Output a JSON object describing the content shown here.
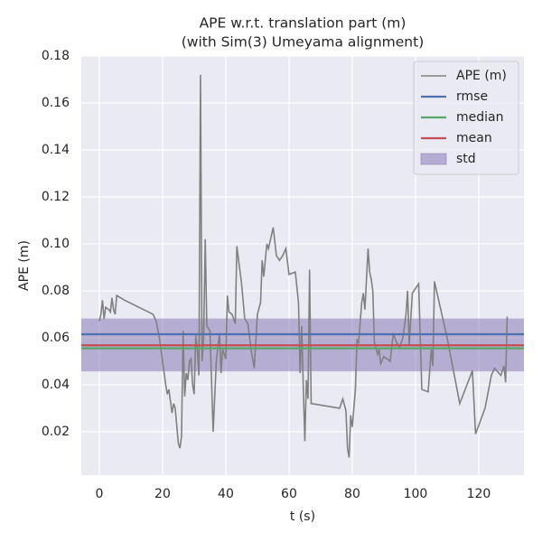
{
  "chart_data": {
    "type": "line",
    "title": "APE w.r.t. translation part (m)",
    "subtitle": "(with Sim(3) Umeyama alignment)",
    "x_label": "t (s)",
    "y_label": "APE (m)",
    "x": [
      0,
      0.5,
      1,
      1.5,
      2,
      3,
      3.5,
      4,
      4.5,
      5,
      5.5,
      8,
      17,
      18,
      19,
      20,
      21,
      21.5,
      22,
      23,
      23.5,
      24,
      25,
      25.5,
      26,
      26.5,
      27,
      27.5,
      28,
      28.5,
      29,
      29.5,
      30,
      30.5,
      31,
      31.5,
      32,
      32.5,
      33,
      33.5,
      34,
      35,
      36,
      37,
      38,
      38.5,
      39,
      40,
      40.5,
      41,
      42,
      43,
      43.5,
      45,
      46,
      47,
      48,
      49,
      50,
      51,
      51.5,
      52,
      53,
      53.5,
      55,
      56,
      57,
      58,
      59,
      60,
      62,
      63,
      63.5,
      64,
      64.5,
      65,
      65.5,
      66,
      66.5,
      67,
      76,
      77,
      78,
      78.5,
      79,
      79.5,
      80,
      81,
      81.5,
      82,
      83,
      83.5,
      84,
      85,
      85.5,
      86,
      86.5,
      87,
      88,
      88.5,
      89,
      90,
      92,
      93,
      94,
      95,
      96,
      97,
      97.5,
      98,
      99,
      101,
      102,
      104,
      105,
      105.5,
      106,
      110,
      114,
      118,
      119,
      122,
      124,
      125,
      127,
      128,
      128.5,
      129
    ],
    "series": [
      {
        "name": "APE (m)",
        "color": "#808080",
        "values": [
          0.067,
          0.07,
          0.076,
          0.068,
          0.073,
          0.072,
          0.071,
          0.077,
          0.072,
          0.07,
          0.078,
          0.076,
          0.07,
          0.067,
          0.06,
          0.05,
          0.04,
          0.036,
          0.038,
          0.028,
          0.032,
          0.03,
          0.015,
          0.013,
          0.018,
          0.063,
          0.035,
          0.045,
          0.042,
          0.05,
          0.051,
          0.04,
          0.036,
          0.061,
          0.055,
          0.044,
          0.172,
          0.05,
          0.06,
          0.102,
          0.065,
          0.063,
          0.02,
          0.05,
          0.062,
          0.045,
          0.055,
          0.051,
          0.078,
          0.071,
          0.07,
          0.066,
          0.099,
          0.083,
          0.068,
          0.066,
          0.055,
          0.047,
          0.07,
          0.075,
          0.093,
          0.086,
          0.1,
          0.098,
          0.107,
          0.095,
          0.093,
          0.095,
          0.098,
          0.087,
          0.088,
          0.075,
          0.045,
          0.065,
          0.04,
          0.016,
          0.042,
          0.034,
          0.089,
          0.032,
          0.03,
          0.034,
          0.029,
          0.013,
          0.009,
          0.027,
          0.022,
          0.038,
          0.059,
          0.058,
          0.075,
          0.079,
          0.072,
          0.098,
          0.088,
          0.085,
          0.08,
          0.058,
          0.053,
          0.055,
          0.049,
          0.052,
          0.05,
          0.062,
          0.058,
          0.056,
          0.06,
          0.07,
          0.08,
          0.057,
          0.079,
          0.083,
          0.038,
          0.037,
          0.055,
          0.048,
          0.084,
          0.06,
          0.032,
          0.046,
          0.019,
          0.03,
          0.044,
          0.047,
          0.044,
          0.048,
          0.041,
          0.069
        ]
      }
    ],
    "stats": [
      {
        "name": "rmse",
        "color": "#4c72b0",
        "value": 0.0615
      },
      {
        "name": "median",
        "color": "#55a868",
        "value": 0.0555
      },
      {
        "name": "mean",
        "color": "#c44e52",
        "value": 0.0568
      }
    ],
    "std": {
      "name": "std",
      "color": "#8172b2",
      "range": [
        0.0457,
        0.0682
      ]
    },
    "xlim": [
      -5.7,
      134.3
    ],
    "ylim": [
      0.0015,
      0.18
    ],
    "xticks": [
      0,
      20,
      40,
      60,
      80,
      100,
      120
    ],
    "yticks": [
      0.02,
      0.04,
      0.06,
      0.08,
      {
        "value": 0.1,
        "label": "0.10"
      },
      0.12,
      0.14,
      0.16,
      0.18
    ],
    "grid": true,
    "legend": "upper right"
  }
}
